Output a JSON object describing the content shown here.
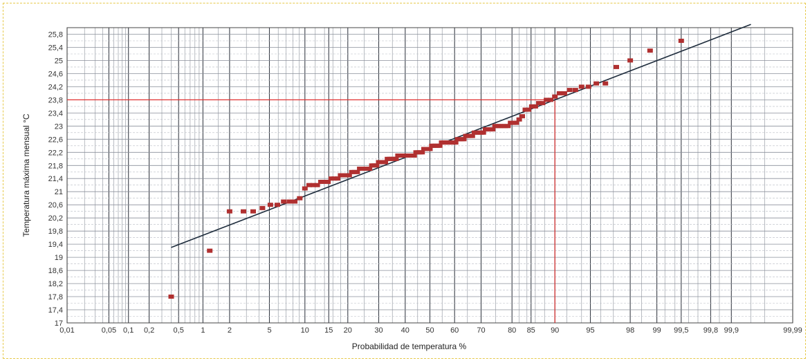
{
  "chart_data": {
    "type": "scatter",
    "xscale": "normal-probability",
    "xlabel": "Probabilidad de temperatura %",
    "ylabel": "Temperatura máxima mensual °C",
    "ylim": [
      17,
      26
    ],
    "grid": true,
    "x_tick_labels": [
      "0,01",
      "0,05",
      "0,1",
      "0,2",
      "0,5",
      "1",
      "2",
      "5",
      "10",
      "15",
      "20",
      "30",
      "40",
      "50",
      "60",
      "70",
      "80",
      "85",
      "90",
      "95",
      "98",
      "99",
      "99,5",
      "99,8",
      "99,9",
      "99,99"
    ],
    "x_ticks": [
      0.01,
      0.05,
      0.1,
      0.2,
      0.5,
      1,
      2,
      5,
      10,
      15,
      20,
      30,
      40,
      50,
      60,
      70,
      80,
      85,
      90,
      95,
      98,
      99,
      99.5,
      99.8,
      99.9,
      99.99
    ],
    "y_tick_labels": [
      "17",
      "17,4",
      "17,8",
      "18,2",
      "18,6",
      "19",
      "19,4",
      "19,8",
      "20,2",
      "20,6",
      "21",
      "21,4",
      "21,8",
      "22,2",
      "22,6",
      "23",
      "23,4",
      "23,8",
      "24,2",
      "24,6",
      "25",
      "25,4",
      "25,8"
    ],
    "y_ticks": [
      17,
      17.4,
      17.8,
      18.2,
      18.6,
      19,
      19.4,
      19.8,
      20.2,
      20.6,
      21,
      21.4,
      21.8,
      22.2,
      22.6,
      23,
      23.4,
      23.8,
      24.2,
      24.6,
      25,
      25.4,
      25.8
    ],
    "series": [
      {
        "color": "#b03030",
        "points": [
          [
            0.4,
            17.8
          ],
          [
            1.2,
            19.2
          ],
          [
            2,
            20.4
          ],
          [
            2.8,
            20.4
          ],
          [
            3.5,
            20.4
          ],
          [
            4.3,
            20.5
          ],
          [
            5.1,
            20.6
          ],
          [
            5.9,
            20.6
          ],
          [
            6.7,
            20.7
          ],
          [
            7.5,
            20.7
          ],
          [
            8.3,
            20.7
          ],
          [
            9.1,
            20.8
          ],
          [
            10,
            21.1
          ],
          [
            10.8,
            21.2
          ],
          [
            11.6,
            21.2
          ],
          [
            12.4,
            21.2
          ],
          [
            13.2,
            21.3
          ],
          [
            14,
            21.3
          ],
          [
            14.8,
            21.3
          ],
          [
            15.6,
            21.4
          ],
          [
            16.4,
            21.4
          ],
          [
            17.2,
            21.4
          ],
          [
            18,
            21.5
          ],
          [
            18.8,
            21.5
          ],
          [
            19.6,
            21.5
          ],
          [
            20.4,
            21.5
          ],
          [
            21.2,
            21.6
          ],
          [
            22,
            21.6
          ],
          [
            22.8,
            21.6
          ],
          [
            23.6,
            21.7
          ],
          [
            24.4,
            21.7
          ],
          [
            25.2,
            21.7
          ],
          [
            26,
            21.7
          ],
          [
            26.8,
            21.7
          ],
          [
            27.6,
            21.8
          ],
          [
            28.4,
            21.8
          ],
          [
            29.2,
            21.8
          ],
          [
            30,
            21.9
          ],
          [
            30.8,
            21.9
          ],
          [
            31.6,
            21.9
          ],
          [
            32.4,
            21.9
          ],
          [
            33.2,
            22
          ],
          [
            34,
            22
          ],
          [
            34.8,
            22
          ],
          [
            35.6,
            22
          ],
          [
            36.4,
            22
          ],
          [
            37.2,
            22.1
          ],
          [
            38,
            22.1
          ],
          [
            38.8,
            22.1
          ],
          [
            39.6,
            22.1
          ],
          [
            40.4,
            22.1
          ],
          [
            41.2,
            22.1
          ],
          [
            42,
            22.1
          ],
          [
            42.8,
            22.1
          ],
          [
            43.6,
            22.1
          ],
          [
            44.4,
            22.2
          ],
          [
            45.2,
            22.2
          ],
          [
            46,
            22.2
          ],
          [
            46.8,
            22.2
          ],
          [
            47.6,
            22.3
          ],
          [
            48.4,
            22.3
          ],
          [
            49.2,
            22.3
          ],
          [
            50,
            22.3
          ],
          [
            50.8,
            22.4
          ],
          [
            51.6,
            22.4
          ],
          [
            52.4,
            22.4
          ],
          [
            53.2,
            22.4
          ],
          [
            54,
            22.4
          ],
          [
            54.8,
            22.5
          ],
          [
            55.6,
            22.5
          ],
          [
            56.4,
            22.5
          ],
          [
            57.2,
            22.5
          ],
          [
            58,
            22.5
          ],
          [
            58.8,
            22.5
          ],
          [
            59.6,
            22.5
          ],
          [
            60.4,
            22.5
          ],
          [
            61.2,
            22.6
          ],
          [
            62,
            22.6
          ],
          [
            62.8,
            22.6
          ],
          [
            63.6,
            22.6
          ],
          [
            64.4,
            22.7
          ],
          [
            65.2,
            22.7
          ],
          [
            66,
            22.7
          ],
          [
            66.8,
            22.7
          ],
          [
            67.6,
            22.8
          ],
          [
            68.4,
            22.8
          ],
          [
            69.2,
            22.8
          ],
          [
            70,
            22.8
          ],
          [
            70.8,
            22.8
          ],
          [
            71.6,
            22.9
          ],
          [
            72.4,
            22.9
          ],
          [
            73.2,
            22.9
          ],
          [
            74,
            22.9
          ],
          [
            74.8,
            23
          ],
          [
            75.6,
            23
          ],
          [
            76.4,
            23
          ],
          [
            77.2,
            23
          ],
          [
            78,
            23
          ],
          [
            78.8,
            23
          ],
          [
            79.6,
            23.1
          ],
          [
            80.4,
            23.1
          ],
          [
            81.2,
            23.1
          ],
          [
            82,
            23.2
          ],
          [
            82.8,
            23.3
          ],
          [
            83.6,
            23.5
          ],
          [
            84.4,
            23.5
          ],
          [
            85.2,
            23.6
          ],
          [
            86,
            23.6
          ],
          [
            86.8,
            23.7
          ],
          [
            87.6,
            23.7
          ],
          [
            88.4,
            23.8
          ],
          [
            89.2,
            23.8
          ],
          [
            90,
            23.9
          ],
          [
            90.8,
            24
          ],
          [
            91.6,
            24
          ],
          [
            92.4,
            24.1
          ],
          [
            93.2,
            24.1
          ],
          [
            94,
            24.2
          ],
          [
            94.8,
            24.2
          ],
          [
            95.6,
            24.3
          ],
          [
            96.4,
            24.3
          ],
          [
            97.2,
            24.8
          ],
          [
            98,
            25
          ],
          [
            98.8,
            25.3
          ],
          [
            99.5,
            25.6
          ]
        ]
      }
    ],
    "fit_line": {
      "color": "#1f2d3d",
      "points": [
        [
          0.4,
          19.3
        ],
        [
          99.95,
          26.1
        ]
      ]
    },
    "reference": {
      "color": "#e03030",
      "x": 90,
      "y": 23.8
    }
  }
}
